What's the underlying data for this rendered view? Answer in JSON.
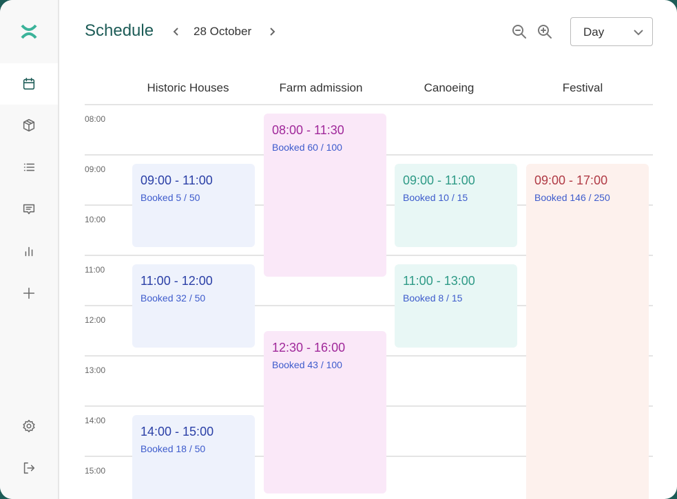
{
  "header": {
    "title": "Schedule",
    "date": "28 October",
    "view_select": "Day"
  },
  "sidebar": {
    "items": [
      {
        "icon": "calendar-icon",
        "active": true
      },
      {
        "icon": "box-icon"
      },
      {
        "icon": "list-icon"
      },
      {
        "icon": "message-icon"
      },
      {
        "icon": "bar-chart-icon"
      },
      {
        "icon": "plus-icon"
      },
      {
        "icon": "settings-icon"
      },
      {
        "icon": "logout-icon"
      }
    ]
  },
  "columns": [
    "Historic Houses",
    "Farm admission",
    "Canoeing",
    "Festival"
  ],
  "hours": [
    "08:00",
    "09:00",
    "10:00",
    "11:00",
    "12:00",
    "13:00",
    "14:00",
    "15:00"
  ],
  "events": [
    {
      "column": "Historic Houses",
      "time": "09:00 - 11:00",
      "booked": "Booked 5 / 50",
      "color": "blue"
    },
    {
      "column": "Historic Houses",
      "time": "11:00 - 12:00",
      "booked": "Booked 32 / 50",
      "color": "blue"
    },
    {
      "column": "Historic Houses",
      "time": "14:00 - 15:00",
      "booked": "Booked 18 / 50",
      "color": "blue"
    },
    {
      "column": "Farm admission",
      "time": "08:00 - 11:30",
      "booked": "Booked 60 / 100",
      "color": "pink"
    },
    {
      "column": "Farm admission",
      "time": "12:30 - 16:00",
      "booked": "Booked 43 / 100",
      "color": "pink"
    },
    {
      "column": "Canoeing",
      "time": "09:00 - 11:00",
      "booked": "Booked 10 / 15",
      "color": "teal"
    },
    {
      "column": "Canoeing",
      "time": "11:00 - 13:00",
      "booked": "Booked 8 / 15",
      "color": "teal"
    },
    {
      "column": "Festival",
      "time": "09:00 - 17:00",
      "booked": "Booked 146 / 250",
      "color": "peach"
    }
  ],
  "colors": {
    "brand": "#1d5c57",
    "logo": "#3bb39a",
    "blue": "#2a3fa6",
    "pink": "#a0289a",
    "teal": "#2e9a86",
    "peach": "#b03a45"
  }
}
